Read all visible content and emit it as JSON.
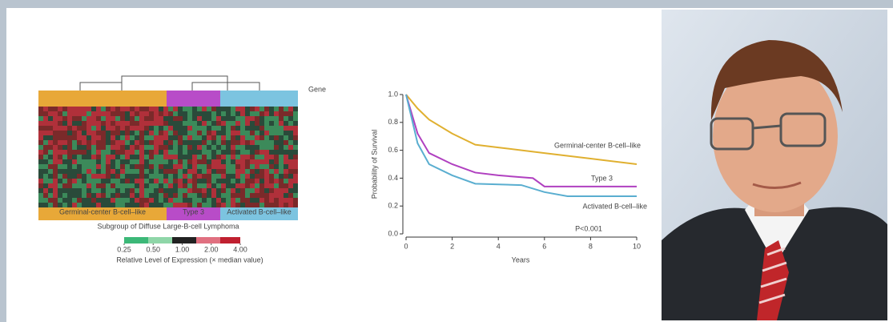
{
  "chart_data": [
    {
      "type": "heatmap",
      "row_label": "Gene",
      "column_label": "Subgroup of Diffuse Large-B-cell Lymphoma",
      "groups": [
        {
          "name": "Germinal-center B-cell–like",
          "color": "#e8a838"
        },
        {
          "name": "Type 3",
          "color": "#b84cc8"
        },
        {
          "name": "Activated B-cell–like",
          "color": "#7cc4e0"
        }
      ],
      "colorbar": {
        "label": "Relative Level of Expression (× median value)",
        "ticks": [
          0.25,
          {
            "value": 0.5,
            "label": "0.50"
          },
          {
            "value": 1,
            "label": "1.00"
          },
          {
            "value": 2,
            "label": "2.00"
          },
          {
            "value": 4,
            "label": "4.00"
          }
        ],
        "lim": [
          0.25,
          4
        ],
        "log_scale": true
      }
    },
    {
      "type": "line",
      "xlabel": "Years",
      "ylabel": "Probability of Survival",
      "xlim": [
        0,
        10
      ],
      "ylim": [
        0,
        1
      ],
      "xticks": [
        0,
        2,
        4,
        6,
        8,
        10
      ],
      "yticks": [
        {
          "value": 0,
          "label": "0.0"
        },
        {
          "value": 0.2,
          "label": "0.2"
        },
        {
          "value": 0.4,
          "label": "0.4"
        },
        {
          "value": 0.6,
          "label": "0.6"
        },
        {
          "value": 0.8,
          "label": "0.8"
        },
        {
          "value": 1,
          "label": "1.0"
        }
      ],
      "annotation": "P<0.001",
      "series": [
        {
          "name": "Germinal-center B-cell–like",
          "color": "#e0b030",
          "x": [
            0,
            0.5,
            1,
            2,
            3,
            4,
            6,
            8,
            10
          ],
          "values": [
            1,
            0.9,
            0.82,
            0.72,
            0.64,
            0.62,
            0.58,
            0.54,
            0.5
          ]
        },
        {
          "name": "Type 3",
          "color": "#b040c0",
          "x": [
            0,
            0.5,
            1,
            2,
            3,
            4,
            5.5,
            6,
            10
          ],
          "values": [
            1,
            0.72,
            0.58,
            0.5,
            0.44,
            0.42,
            0.4,
            0.34,
            0.34
          ]
        },
        {
          "name": "Activated B-cell–like",
          "color": "#5aaed0",
          "x": [
            0,
            0.5,
            1,
            2,
            3,
            5,
            6,
            7,
            10
          ],
          "values": [
            1,
            0.65,
            0.5,
            0.42,
            0.36,
            0.35,
            0.3,
            0.27,
            0.27
          ]
        }
      ]
    }
  ]
}
